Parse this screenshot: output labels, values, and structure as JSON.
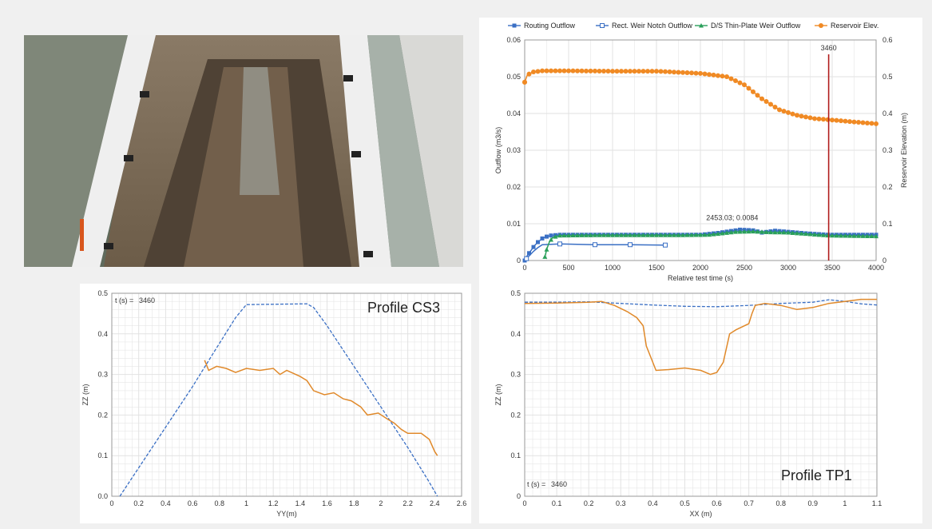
{
  "colors": {
    "routing": "#3a6fc4",
    "rect_weir": "#3a6fc4",
    "thin_plate": "#2aa05a",
    "reservoir": "#f08a24",
    "time_marker": "#b01c1c",
    "profile_initial": "#3a6fc4",
    "profile_current": "#e0892a",
    "grid": "#e2e2e2"
  },
  "photo": {
    "icon": "flume-experiment-photo-icon"
  },
  "chart_data": [
    {
      "id": "outflow",
      "type": "line",
      "xlabel": "Relative test time (s)",
      "ylabel": "Outflow (m3/s)",
      "y2label": "Reservoir Elevation (m)",
      "xlim": [
        0,
        4000
      ],
      "ylim": [
        0,
        0.06
      ],
      "y2lim": [
        0,
        0.6
      ],
      "xticks": [
        "0",
        "500",
        "1000",
        "1500",
        "2000",
        "2500",
        "3000",
        "3500",
        "4000"
      ],
      "yticks": [
        "0",
        "0.01",
        "0.02",
        "0.03",
        "0.04",
        "0.05",
        "0.06"
      ],
      "y2ticks": [
        "0",
        "0.1",
        "0.2",
        "0.3",
        "0.4",
        "0.5",
        "0.6"
      ],
      "grid": true,
      "legend_position": "top",
      "legend": [
        "Routing Outflow",
        "Rect. Weir Notch Outflow",
        "D/S Thin-Plate Weir Outflow",
        "Reservoir Elev."
      ],
      "marker_line": {
        "x": 3460,
        "label": "3460"
      },
      "annotation": {
        "x": 2453.03,
        "y": 0.0084,
        "text": "2453.03; 0.0084"
      },
      "series": [
        {
          "name": "Routing Outflow",
          "axis": "left",
          "style": "square-filled",
          "points": [
            [
              0,
              0.0
            ],
            [
              20,
              0.001
            ],
            [
              50,
              0.002
            ],
            [
              80,
              0.003
            ],
            [
              110,
              0.004
            ],
            [
              150,
              0.005
            ],
            [
              200,
              0.006
            ],
            [
              250,
              0.0065
            ],
            [
              300,
              0.0068
            ],
            [
              400,
              0.007
            ],
            [
              600,
              0.007
            ],
            [
              1000,
              0.007
            ],
            [
              1500,
              0.007
            ],
            [
              2000,
              0.007
            ],
            [
              2200,
              0.0075
            ],
            [
              2400,
              0.0082
            ],
            [
              2453,
              0.0084
            ],
            [
              2600,
              0.0082
            ],
            [
              2700,
              0.0076
            ],
            [
              2850,
              0.0081
            ],
            [
              3000,
              0.0078
            ],
            [
              3200,
              0.0074
            ],
            [
              3460,
              0.007
            ],
            [
              3700,
              0.007
            ],
            [
              4000,
              0.007
            ]
          ]
        },
        {
          "name": "Rect. Weir Notch Outflow",
          "axis": "left",
          "style": "square-open",
          "points": [
            [
              20,
              0.0005
            ],
            [
              60,
              0.0015
            ],
            [
              100,
              0.0025
            ],
            [
              150,
              0.0035
            ],
            [
              200,
              0.0043
            ],
            [
              400,
              0.0045
            ],
            [
              800,
              0.0043
            ],
            [
              1200,
              0.0043
            ],
            [
              1600,
              0.0042
            ]
          ]
        },
        {
          "name": "D/S Thin-Plate Weir Outflow",
          "axis": "left",
          "style": "triangle",
          "points": [
            [
              230,
              0.001
            ],
            [
              250,
              0.003
            ],
            [
              280,
              0.005
            ],
            [
              320,
              0.0063
            ],
            [
              400,
              0.0068
            ],
            [
              800,
              0.0069
            ],
            [
              1200,
              0.0069
            ],
            [
              1800,
              0.0069
            ],
            [
              2100,
              0.007
            ],
            [
              2400,
              0.0078
            ],
            [
              2600,
              0.0079
            ],
            [
              2800,
              0.0077
            ],
            [
              3000,
              0.0076
            ],
            [
              3460,
              0.0068
            ],
            [
              4000,
              0.0066
            ]
          ]
        },
        {
          "name": "Reservoir Elev.",
          "axis": "right",
          "style": "circle",
          "points": [
            [
              0,
              0.485
            ],
            [
              30,
              0.505
            ],
            [
              100,
              0.513
            ],
            [
              200,
              0.516
            ],
            [
              500,
              0.516
            ],
            [
              1000,
              0.515
            ],
            [
              1500,
              0.515
            ],
            [
              2000,
              0.509
            ],
            [
              2300,
              0.5
            ],
            [
              2500,
              0.478
            ],
            [
              2700,
              0.44
            ],
            [
              2900,
              0.41
            ],
            [
              3100,
              0.395
            ],
            [
              3300,
              0.386
            ],
            [
              3460,
              0.383
            ],
            [
              3700,
              0.378
            ],
            [
              4000,
              0.372
            ]
          ]
        }
      ]
    },
    {
      "id": "cs3",
      "type": "line",
      "title": "Profile CS3",
      "time_label": "t (s) =",
      "time_value": "3460",
      "xlabel": "YY(m)",
      "ylabel": "ZZ (m)",
      "xlim": [
        0,
        2.6
      ],
      "ylim": [
        0,
        0.5
      ],
      "xticks": [
        "0",
        "0.2",
        "0.4",
        "0.6",
        "0.8",
        "1",
        "1.2",
        "1.4",
        "1.6",
        "1.8",
        "2",
        "2.2",
        "2.4",
        "2.6"
      ],
      "yticks": [
        "0.0",
        "0.1",
        "0.2",
        "0.3",
        "0.4",
        "0.5"
      ],
      "grid": true,
      "series": [
        {
          "name": "",
          "role": "initial",
          "style": "dashed",
          "points": [
            [
              0.06,
              0.0
            ],
            [
              0.6,
              0.27
            ],
            [
              0.75,
              0.35
            ],
            [
              0.92,
              0.44
            ],
            [
              1.0,
              0.472
            ],
            [
              1.45,
              0.474
            ],
            [
              1.5,
              0.465
            ],
            [
              1.6,
              0.42
            ],
            [
              2.0,
              0.22
            ],
            [
              2.2,
              0.12
            ],
            [
              2.35,
              0.04
            ],
            [
              2.42,
              0.0
            ]
          ]
        },
        {
          "name": "",
          "role": "current",
          "style": "solid",
          "points": [
            [
              0.69,
              0.335
            ],
            [
              0.72,
              0.31
            ],
            [
              0.78,
              0.32
            ],
            [
              0.85,
              0.315
            ],
            [
              0.92,
              0.305
            ],
            [
              1.0,
              0.315
            ],
            [
              1.1,
              0.31
            ],
            [
              1.2,
              0.315
            ],
            [
              1.25,
              0.3
            ],
            [
              1.3,
              0.31
            ],
            [
              1.4,
              0.295
            ],
            [
              1.45,
              0.285
            ],
            [
              1.5,
              0.26
            ],
            [
              1.58,
              0.25
            ],
            [
              1.65,
              0.255
            ],
            [
              1.72,
              0.24
            ],
            [
              1.78,
              0.235
            ],
            [
              1.85,
              0.22
            ],
            [
              1.9,
              0.2
            ],
            [
              1.98,
              0.205
            ],
            [
              2.05,
              0.19
            ],
            [
              2.1,
              0.18
            ],
            [
              2.15,
              0.165
            ],
            [
              2.2,
              0.155
            ],
            [
              2.3,
              0.155
            ],
            [
              2.36,
              0.14
            ],
            [
              2.4,
              0.11
            ],
            [
              2.42,
              0.1
            ]
          ]
        }
      ]
    },
    {
      "id": "tp1",
      "type": "line",
      "title": "Profile TP1",
      "time_label": "t (s) =",
      "time_value": "3460",
      "xlabel": "XX (m)",
      "ylabel": "ZZ (m)",
      "xlim": [
        0,
        1.1
      ],
      "ylim": [
        0,
        0.5
      ],
      "xticks": [
        "0",
        "0.1",
        "0.2",
        "0.3",
        "0.4",
        "0.5",
        "0.6",
        "0.7",
        "0.8",
        "0.9",
        "1",
        "1.1"
      ],
      "yticks": [
        "0",
        "0.1",
        "0.2",
        "0.3",
        "0.4",
        "0.5"
      ],
      "grid": true,
      "series": [
        {
          "name": "",
          "role": "initial",
          "style": "dashed",
          "points": [
            [
              0,
              0.478
            ],
            [
              0.1,
              0.478
            ],
            [
              0.2,
              0.479
            ],
            [
              0.3,
              0.475
            ],
            [
              0.4,
              0.471
            ],
            [
              0.5,
              0.468
            ],
            [
              0.6,
              0.467
            ],
            [
              0.7,
              0.47
            ],
            [
              0.8,
              0.475
            ],
            [
              0.9,
              0.478
            ],
            [
              0.95,
              0.484
            ],
            [
              1.0,
              0.48
            ],
            [
              1.05,
              0.474
            ],
            [
              1.1,
              0.471
            ]
          ]
        },
        {
          "name": "",
          "role": "current",
          "style": "solid",
          "points": [
            [
              0,
              0.475
            ],
            [
              0.1,
              0.476
            ],
            [
              0.2,
              0.478
            ],
            [
              0.24,
              0.48
            ],
            [
              0.28,
              0.47
            ],
            [
              0.32,
              0.455
            ],
            [
              0.35,
              0.44
            ],
            [
              0.37,
              0.42
            ],
            [
              0.38,
              0.37
            ],
            [
              0.4,
              0.33
            ],
            [
              0.41,
              0.31
            ],
            [
              0.45,
              0.312
            ],
            [
              0.5,
              0.316
            ],
            [
              0.55,
              0.31
            ],
            [
              0.58,
              0.3
            ],
            [
              0.6,
              0.305
            ],
            [
              0.62,
              0.33
            ],
            [
              0.64,
              0.4
            ],
            [
              0.66,
              0.41
            ],
            [
              0.7,
              0.425
            ],
            [
              0.71,
              0.45
            ],
            [
              0.72,
              0.47
            ],
            [
              0.75,
              0.475
            ],
            [
              0.8,
              0.47
            ],
            [
              0.85,
              0.46
            ],
            [
              0.9,
              0.465
            ],
            [
              0.95,
              0.475
            ],
            [
              1.0,
              0.48
            ],
            [
              1.05,
              0.485
            ],
            [
              1.1,
              0.485
            ]
          ]
        }
      ]
    }
  ]
}
